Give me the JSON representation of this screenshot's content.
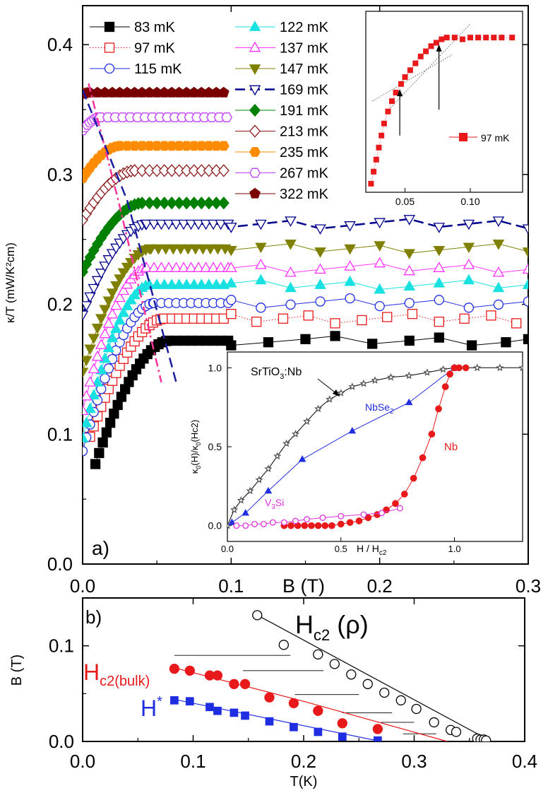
{
  "chart_data": [
    {
      "panel": "a",
      "type": "scatter",
      "panel_label": "a)",
      "xlabel": "B (T)",
      "ylabel": "κ/T (mW/K²cm)",
      "xlim": [
        0,
        0.3
      ],
      "ylim": [
        0,
        0.43
      ],
      "xticks": [
        "0.0",
        "0.1",
        "0.2",
        "0.3"
      ],
      "yticks": [
        "0.0",
        "0.1",
        "0.2",
        "0.3",
        "0.4"
      ],
      "legend": {
        "position": "top-left"
      },
      "series": [
        {
          "name": "83 mK",
          "color": "#000000",
          "marker": "square",
          "filled": true,
          "line": "solid",
          "sat": 0.172,
          "low": 0.077,
          "b0": 0.0086,
          "bs": 0.058
        },
        {
          "name": "97 mK",
          "color": "#e8191b",
          "marker": "square",
          "filled": false,
          "line": "dotted",
          "sat": 0.189,
          "low": 0.098,
          "b0": 0.005,
          "bs": 0.055
        },
        {
          "name": "115 mK",
          "color": "#1f2ee0",
          "marker": "circle",
          "filled": false,
          "line": "solid",
          "sat": 0.201,
          "low": 0.087,
          "b0": 0.0,
          "bs": 0.048
        },
        {
          "name": "122 mK",
          "color": "#19e1e1",
          "marker": "triangle",
          "filled": true,
          "line": "solid",
          "sat": 0.215,
          "low": 0.097,
          "b0": 0.0,
          "bs": 0.045
        },
        {
          "name": "137 mK",
          "color": "#ff33ff",
          "marker": "triangle",
          "filled": false,
          "line": "solid",
          "sat": 0.228,
          "low": 0.118,
          "b0": 0.0,
          "bs": 0.043
        },
        {
          "name": "147 mK",
          "color": "#808000",
          "marker": "triangle-down",
          "filled": true,
          "line": "solid",
          "sat": 0.243,
          "low": 0.148,
          "b0": 0.0,
          "bs": 0.046
        },
        {
          "name": "169 mK",
          "color": "#00008b",
          "marker": "triangle-down",
          "filled": false,
          "line": "dashed",
          "sat": 0.262,
          "low": 0.192,
          "b0": 0.0,
          "bs": 0.043
        },
        {
          "name": "191 mK",
          "color": "#008000",
          "marker": "diamond",
          "filled": true,
          "line": "solid",
          "sat": 0.278,
          "low": 0.225,
          "b0": 0.0,
          "bs": 0.04
        },
        {
          "name": "213 mK",
          "color": "#8b1a1a",
          "marker": "diamond",
          "filled": false,
          "line": "solid",
          "sat": 0.303,
          "low": 0.265,
          "b0": 0.0,
          "bs": 0.035
        },
        {
          "name": "235 mK",
          "color": "#ff8c00",
          "marker": "hexagon",
          "filled": true,
          "line": "solid",
          "sat": 0.322,
          "low": 0.297,
          "b0": 0.0,
          "bs": 0.025
        },
        {
          "name": "267 mK",
          "color": "#c040ff",
          "marker": "hexagon",
          "filled": false,
          "line": "solid",
          "sat": 0.344,
          "low": 0.334,
          "b0": 0.0,
          "bs": 0.012
        },
        {
          "name": "322 mK",
          "color": "#7a0000",
          "marker": "pentagon",
          "filled": true,
          "line": "solid",
          "sat": 0.363,
          "low": 0.362,
          "b0": 0.0,
          "bs": 0.005
        }
      ],
      "guide_lines": [
        {
          "name": "H* guide",
          "color": "#ff3399",
          "style": "dash-dot",
          "points": [
            [
              0.004,
              0.37
            ],
            [
              0.024,
              0.28
            ],
            [
              0.053,
              0.14
            ]
          ]
        },
        {
          "name": "Hc2 guide",
          "color": "#1c1ca0",
          "style": "dashed",
          "points": [
            [
              0.0,
              0.365
            ],
            [
              0.03,
              0.28
            ],
            [
              0.063,
              0.14
            ]
          ]
        }
      ]
    },
    {
      "panel": "a-inset-top",
      "type": "scatter",
      "xticks": [
        "0.05",
        "0.10"
      ],
      "xlim": [
        0.02,
        0.14
      ],
      "legend_label": "97 mK",
      "color": "#e8191b",
      "points": [
        [
          0.024,
          0.05
        ],
        [
          0.026,
          0.12
        ],
        [
          0.028,
          0.19
        ],
        [
          0.03,
          0.26
        ],
        [
          0.032,
          0.33
        ],
        [
          0.034,
          0.4
        ],
        [
          0.037,
          0.47
        ],
        [
          0.04,
          0.53
        ],
        [
          0.043,
          0.58
        ],
        [
          0.047,
          0.63
        ],
        [
          0.05,
          0.67
        ],
        [
          0.054,
          0.71
        ],
        [
          0.058,
          0.75
        ],
        [
          0.062,
          0.79
        ],
        [
          0.066,
          0.82
        ],
        [
          0.07,
          0.85
        ],
        [
          0.074,
          0.87
        ],
        [
          0.078,
          0.89
        ],
        [
          0.082,
          0.9
        ],
        [
          0.088,
          0.9
        ],
        [
          0.094,
          0.89
        ],
        [
          0.1,
          0.9
        ],
        [
          0.106,
          0.9
        ],
        [
          0.112,
          0.9
        ],
        [
          0.118,
          0.9
        ],
        [
          0.124,
          0.9
        ],
        [
          0.132,
          0.9
        ]
      ],
      "arrows_at": [
        0.046,
        0.076
      ]
    },
    {
      "panel": "a-inset-bottom",
      "type": "line",
      "xlabel": "H / Hc2",
      "ylabel": "κ0(H)/κ0(Hc2)",
      "xlim": [
        0,
        1.3
      ],
      "ylim": [
        -0.1,
        1.1
      ],
      "xticks": [
        "0.0",
        "0.5",
        "1.0"
      ],
      "yticks": [
        "0.0",
        "0.5",
        "1.0"
      ],
      "series": [
        {
          "name": "SrTiO3:Nb",
          "color": "#000000",
          "marker": "star",
          "x": [
            0.0,
            0.03,
            0.06,
            0.1,
            0.14,
            0.18,
            0.22,
            0.26,
            0.3,
            0.35,
            0.4,
            0.45,
            0.5,
            0.55,
            0.6,
            0.65,
            0.72,
            0.8,
            0.88,
            0.95,
            1.0,
            1.1,
            1.2,
            1.3
          ],
          "y": [
            0.0,
            0.1,
            0.16,
            0.22,
            0.29,
            0.36,
            0.44,
            0.52,
            0.58,
            0.66,
            0.74,
            0.8,
            0.84,
            0.88,
            0.9,
            0.92,
            0.94,
            0.95,
            0.97,
            0.99,
            1.0,
            1.0,
            1.0,
            1.0
          ]
        },
        {
          "name": "NbSe2",
          "color": "#1f2ee0",
          "marker": "triangle",
          "x": [
            0.02,
            0.08,
            0.18,
            0.33,
            0.55,
            0.8,
            1.0
          ],
          "y": [
            0.02,
            0.08,
            0.22,
            0.42,
            0.6,
            0.78,
            1.0
          ]
        },
        {
          "name": "Nb",
          "color": "#e8191b",
          "marker": "circle",
          "x": [
            0.25,
            0.28,
            0.31,
            0.34,
            0.37,
            0.4,
            0.43,
            0.46,
            0.5,
            0.54,
            0.58,
            0.62,
            0.66,
            0.7,
            0.74,
            0.78,
            0.82,
            0.86,
            0.9,
            0.93,
            0.96,
            0.98,
            1.0,
            1.02,
            1.05
          ],
          "y": [
            0.0,
            0.0,
            0.0,
            0.0,
            0.0,
            0.0,
            0.0,
            0.0,
            0.01,
            0.02,
            0.03,
            0.05,
            0.07,
            0.1,
            0.14,
            0.2,
            0.3,
            0.43,
            0.58,
            0.74,
            0.88,
            0.96,
            1.0,
            1.0,
            1.0
          ]
        },
        {
          "name": "V3Si",
          "color": "#dd33dd",
          "marker": "circle-open",
          "x": [
            0.04,
            0.08,
            0.12,
            0.16,
            0.2,
            0.25,
            0.3,
            0.35,
            0.42,
            0.5,
            0.6,
            0.68,
            0.76
          ],
          "y": [
            0.0,
            0.0,
            0.01,
            0.01,
            0.02,
            0.02,
            0.03,
            0.04,
            0.05,
            0.06,
            0.07,
            0.08,
            0.11
          ]
        }
      ],
      "labels": {
        "srtio": "SrTiO",
        "srtio_sub": "3",
        "srtio_tail": ":Nb",
        "nbse": "NbSe",
        "nbse_sub": "2",
        "nb": "Nb",
        "vsi_v": "V",
        "vsi_sub": "3",
        "vsi_tail": "Si",
        "xl_main": "H / H",
        "xl_sub": "c2",
        "yl_a": "κ",
        "yl_a_sub": "0",
        "yl_b": "(H)/κ",
        "yl_b_sub": "0",
        "yl_c": "(Hc2)"
      }
    },
    {
      "panel": "b",
      "type": "scatter",
      "panel_label": "b)",
      "xlabel": "T(K)",
      "ylabel": "B (T)",
      "xlim": [
        0,
        0.4
      ],
      "ylim": [
        0,
        0.15
      ],
      "xticks": [
        "0.0",
        "0.1",
        "0.2",
        "0.3",
        "0.4"
      ],
      "yticks": [
        "0.0",
        "0.1"
      ],
      "series": [
        {
          "name": "Hc2 (ρ)",
          "color": "#000000",
          "marker": "circle-open",
          "x": [
            0.158,
            0.182,
            0.213,
            0.228,
            0.243,
            0.258,
            0.273,
            0.288,
            0.302,
            0.318,
            0.333,
            0.338,
            0.357,
            0.36,
            0.363,
            0.365
          ],
          "y": [
            0.132,
            0.101,
            0.091,
            0.081,
            0.07,
            0.06,
            0.051,
            0.043,
            0.034,
            0.02,
            0.012,
            0.01,
            0.003,
            0.002,
            0.002,
            0.001
          ],
          "fit": [
            [
              0.155,
              0.134
            ],
            [
              0.37,
              0.0
            ]
          ]
        },
        {
          "name": "Hc2(bulk)",
          "color": "#e8191b",
          "marker": "circle",
          "x": [
            0.083,
            0.097,
            0.115,
            0.122,
            0.137,
            0.147,
            0.169,
            0.191,
            0.213,
            0.235,
            0.267
          ],
          "y": [
            0.076,
            0.074,
            0.069,
            0.069,
            0.06,
            0.06,
            0.046,
            0.04,
            0.032,
            0.019,
            0.013
          ],
          "fit": [
            [
              0.083,
              0.077
            ],
            [
              0.2,
              0.042
            ],
            [
              0.33,
              0.0
            ]
          ]
        },
        {
          "name": "H*",
          "color": "#1f2ee0",
          "marker": "square",
          "x": [
            0.083,
            0.097,
            0.115,
            0.122,
            0.137,
            0.147,
            0.169,
            0.191,
            0.213,
            0.235,
            0.267
          ],
          "y": [
            0.043,
            0.042,
            0.036,
            0.032,
            0.03,
            0.027,
            0.021,
            0.015,
            0.01,
            0.005,
            0.001
          ],
          "fit": [
            [
              0.083,
              0.044
            ],
            [
              0.27,
              0.0
            ]
          ]
        }
      ],
      "horizontal_segments": [
        [
          0.083,
          0.188,
          0.09
        ],
        [
          0.145,
          0.218,
          0.074
        ],
        [
          0.192,
          0.25,
          0.049
        ],
        [
          0.235,
          0.28,
          0.03
        ],
        [
          0.27,
          0.3,
          0.02
        ],
        [
          0.29,
          0.32,
          0.008
        ]
      ],
      "labels": {
        "hc2_main": "H",
        "hc2_sub": "c2",
        "hc2_tail": " (ρ)",
        "bulk_main": "H",
        "bulk_sub": "c2(bulk)",
        "hstar_main": "H",
        "hstar_sup": "*"
      }
    }
  ]
}
